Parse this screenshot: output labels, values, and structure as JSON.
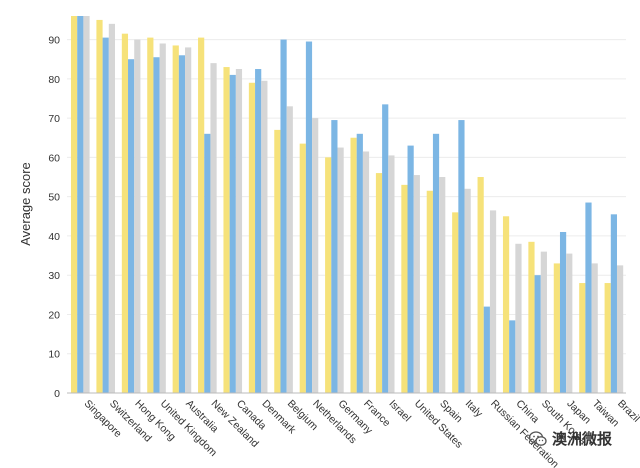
{
  "chart_data": {
    "type": "bar",
    "ylabel": "Average score",
    "xlabel": "",
    "ylim": [
      0,
      96
    ],
    "yticks": [
      0,
      10,
      20,
      30,
      40,
      50,
      60,
      70,
      80,
      90
    ],
    "grid": true,
    "categories": [
      "Singapore",
      "Switzerland",
      "Hong Kong",
      "United Kingdom",
      "Australia",
      "New Zealand",
      "Canada",
      "Denmark",
      "Belgium",
      "Netherlands",
      "Germany",
      "France",
      "Israel",
      "United States",
      "Spain",
      "Italy",
      "Russian Federation",
      "China",
      "South Korea",
      "Japan",
      "Taiwan",
      "Brazil"
    ],
    "series": [
      {
        "color": "#f6e27a",
        "values": [
          96,
          95,
          91.5,
          90.5,
          88.5,
          90.5,
          83,
          79,
          67,
          63.5,
          60,
          65,
          56,
          53,
          51.5,
          46,
          55,
          45,
          38.5,
          33,
          28,
          28
        ]
      },
      {
        "color": "#7cb6e4",
        "values": [
          96,
          90.5,
          85,
          85.5,
          86,
          66,
          81,
          82.5,
          90,
          89.5,
          69.5,
          66,
          73.5,
          63,
          66,
          69.5,
          22,
          18.5,
          30,
          41,
          48.5,
          45.5
        ]
      },
      {
        "color": "#d6d6d6",
        "values": [
          96,
          94,
          90,
          89,
          88,
          84,
          82.5,
          79.5,
          73,
          70,
          62.5,
          61.5,
          60.5,
          55.5,
          55,
          52,
          46.5,
          38,
          36,
          35.5,
          33,
          32.5
        ]
      }
    ]
  },
  "watermark": {
    "text": "澳洲微报",
    "icon": "wechat-icon"
  }
}
